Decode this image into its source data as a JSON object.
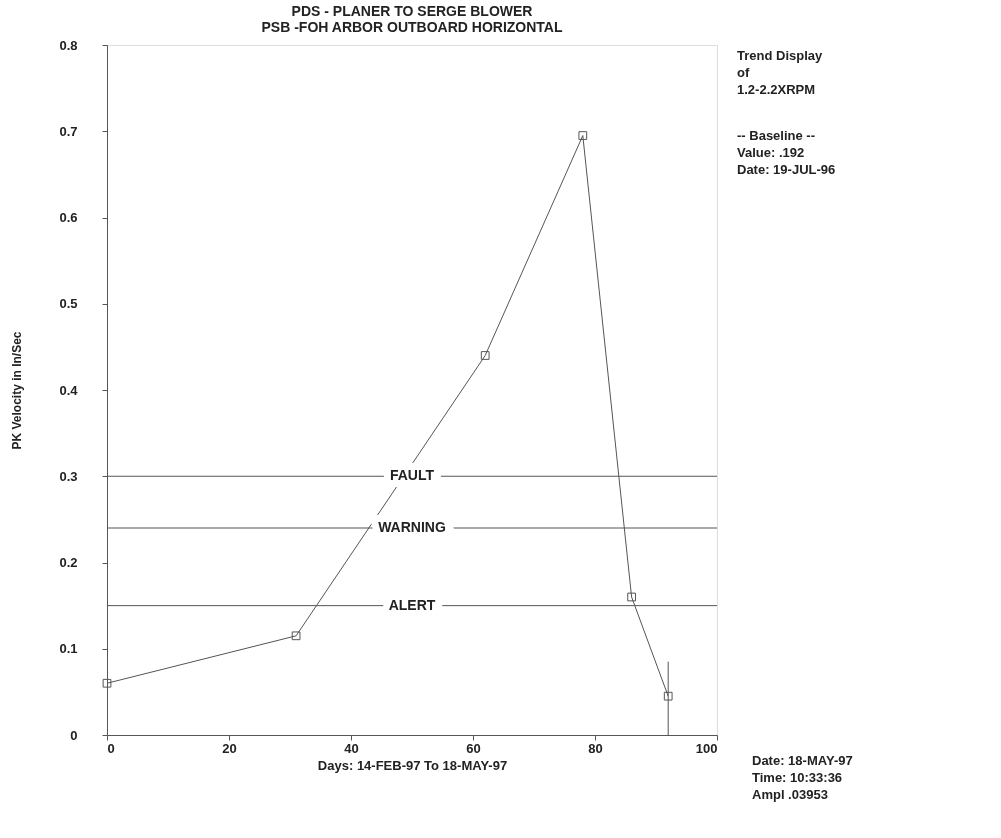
{
  "chart_data": {
    "type": "line",
    "title": "PDS  - PLANER TO SERGE BLOWER",
    "subtitle": "PSB      -FOH   ARBOR OUTBOARD HORIZONTAL",
    "xlabel": "Days:  14-FEB-97  To  18-MAY-97",
    "ylabel": "PK Velocity in In/Sec",
    "x": [
      0,
      31,
      62,
      78,
      86,
      92
    ],
    "series": [
      {
        "color": "#555555",
        "values": [
          0.06,
          0.115,
          0.44,
          0.695,
          0.16,
          0.045
        ],
        "errors": [
          null,
          null,
          null,
          null,
          null,
          [
            0,
            0.085
          ]
        ]
      }
    ],
    "xlim": [
      0,
      100
    ],
    "xticks": [
      0,
      20,
      40,
      60,
      80,
      100
    ],
    "ylim": [
      0,
      0.8
    ],
    "yticks": [
      0,
      0.1,
      0.2,
      0.3,
      0.4,
      0.5,
      0.6,
      0.7,
      0.8
    ],
    "ref_lines": [
      {
        "axis": "y",
        "value": 0.3,
        "label": "FAULT",
        "color": "#555555"
      },
      {
        "axis": "y",
        "value": 0.24,
        "label": "WARNING",
        "color": "#555555"
      },
      {
        "axis": "y",
        "value": 0.15,
        "label": "ALERT",
        "color": "#555555"
      }
    ],
    "annotations": [
      "Trend Display\n    of\n 1.2-2.2XRPM",
      "-- Baseline --\nValue:     .192\nDate:  19-JUL-96",
      "Date: 18-MAY-97\nTime: 10:33:36\nAmpl  .03953"
    ],
    "marker": "square",
    "grid": false
  }
}
